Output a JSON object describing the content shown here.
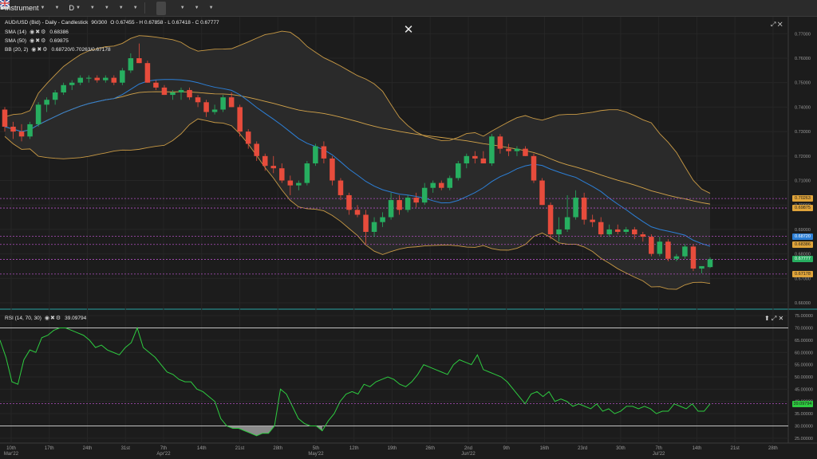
{
  "toolbar": {
    "instrument_label": "Instrument",
    "timeframe_label": "D",
    "flag_icon": "uk-flag-icon"
  },
  "main_chart": {
    "title": "AUD/USD (Bid) - Daily - Candlestick",
    "bars": "90/300",
    "ohlc": "O 0.67455 - H 0.67858 - L 0.67418 - C 0.67777",
    "indicators": [
      {
        "name": "SMA (14)",
        "value": "0.68386"
      },
      {
        "name": "SMA (50)",
        "value": "0.69875"
      },
      {
        "name": "BB (20, 2)",
        "value": "0.68720/0.70263/0.67178"
      }
    ],
    "price_labels": [
      "0.77000",
      "0.76000",
      "0.75000",
      "0.74000",
      "0.73000",
      "0.72000",
      "0.71000",
      "0.70000",
      "0.69000",
      "0.68000",
      "0.67000",
      "0.66000"
    ],
    "price_tags": [
      {
        "text": "0.70263",
        "color": "#e0a43a",
        "fg": "#1c1c1c"
      },
      {
        "text": "0.69875",
        "color": "#e0a43a",
        "fg": "#1c1c1c"
      },
      {
        "text": "0.68720",
        "color": "#2c7fd6",
        "fg": "#ffffff"
      },
      {
        "text": "0.68386",
        "color": "#e0a43a",
        "fg": "#1c1c1c"
      },
      {
        "text": "0.67777",
        "color": "#27ae60",
        "fg": "#ffffff"
      },
      {
        "text": "0.67178",
        "color": "#e0a43a",
        "fg": "#1c1c1c"
      }
    ]
  },
  "rsi": {
    "title": "RSI (14, 70, 30)",
    "value": "39.09794",
    "scale_labels": [
      "75.00000",
      "70.00000",
      "65.00000",
      "60.00000",
      "55.00000",
      "50.00000",
      "45.00000",
      "40.00000",
      "35.00000",
      "30.00000",
      "25.00000"
    ],
    "current_tag": "39.09794"
  },
  "x_axis": {
    "labels": [
      {
        "t": "10th",
        "sub": "Mar'22"
      },
      {
        "t": "17th",
        "sub": ""
      },
      {
        "t": "24th",
        "sub": ""
      },
      {
        "t": "31st",
        "sub": ""
      },
      {
        "t": "7th",
        "sub": "Apr'22"
      },
      {
        "t": "14th",
        "sub": ""
      },
      {
        "t": "21st",
        "sub": ""
      },
      {
        "t": "28th",
        "sub": ""
      },
      {
        "t": "5th",
        "sub": "May'22"
      },
      {
        "t": "12th",
        "sub": ""
      },
      {
        "t": "19th",
        "sub": ""
      },
      {
        "t": "26th",
        "sub": ""
      },
      {
        "t": "2nd",
        "sub": "Jun'22"
      },
      {
        "t": "9th",
        "sub": ""
      },
      {
        "t": "16th",
        "sub": ""
      },
      {
        "t": "23rd",
        "sub": ""
      },
      {
        "t": "30th",
        "sub": ""
      },
      {
        "t": "7th",
        "sub": "Jul'22"
      },
      {
        "t": "14th",
        "sub": ""
      },
      {
        "t": "21st",
        "sub": ""
      },
      {
        "t": "28th",
        "sub": ""
      }
    ]
  },
  "colors": {
    "bull": "#27ae60",
    "bear": "#e74c3c",
    "sma14": "#2c7fd6",
    "sma50": "#d4a44a",
    "bb": "#c99a45",
    "rsi": "#2ecc40",
    "guide": "#b04fc0"
  },
  "chart_data": {
    "type": "candlestick",
    "series": [
      {
        "name": "AUD/USD",
        "ohlc": [
          [
            0.739,
            0.74,
            0.73,
            0.732
          ],
          [
            0.732,
            0.734,
            0.727,
            0.73
          ],
          [
            0.73,
            0.733,
            0.726,
            0.728
          ],
          [
            0.728,
            0.734,
            0.727,
            0.733
          ],
          [
            0.733,
            0.742,
            0.732,
            0.741
          ],
          [
            0.741,
            0.744,
            0.738,
            0.743
          ],
          [
            0.743,
            0.747,
            0.741,
            0.746
          ],
          [
            0.746,
            0.75,
            0.745,
            0.749
          ],
          [
            0.749,
            0.751,
            0.747,
            0.75
          ],
          [
            0.75,
            0.753,
            0.749,
            0.752
          ],
          [
            0.752,
            0.753,
            0.75,
            0.752
          ],
          [
            0.752,
            0.753,
            0.75,
            0.751
          ],
          [
            0.751,
            0.753,
            0.75,
            0.752
          ],
          [
            0.752,
            0.753,
            0.749,
            0.75
          ],
          [
            0.75,
            0.756,
            0.749,
            0.755
          ],
          [
            0.755,
            0.762,
            0.754,
            0.76
          ],
          [
            0.76,
            0.766,
            0.758,
            0.758
          ],
          [
            0.758,
            0.759,
            0.75,
            0.75
          ],
          [
            0.75,
            0.751,
            0.747,
            0.748
          ],
          [
            0.748,
            0.749,
            0.745,
            0.745
          ],
          [
            0.745,
            0.747,
            0.743,
            0.746
          ],
          [
            0.746,
            0.748,
            0.743,
            0.747
          ],
          [
            0.747,
            0.748,
            0.743,
            0.744
          ],
          [
            0.744,
            0.745,
            0.74,
            0.742
          ],
          [
            0.742,
            0.743,
            0.736,
            0.738
          ],
          [
            0.738,
            0.741,
            0.737,
            0.739
          ],
          [
            0.739,
            0.745,
            0.738,
            0.744
          ],
          [
            0.744,
            0.746,
            0.74,
            0.74
          ],
          [
            0.74,
            0.741,
            0.728,
            0.73
          ],
          [
            0.73,
            0.731,
            0.723,
            0.725
          ],
          [
            0.725,
            0.726,
            0.718,
            0.72
          ],
          [
            0.72,
            0.721,
            0.714,
            0.716
          ],
          [
            0.716,
            0.72,
            0.713,
            0.715
          ],
          [
            0.715,
            0.717,
            0.709,
            0.71
          ],
          [
            0.71,
            0.712,
            0.704,
            0.708
          ],
          [
            0.708,
            0.71,
            0.706,
            0.709
          ],
          [
            0.709,
            0.718,
            0.708,
            0.717
          ],
          [
            0.717,
            0.725,
            0.716,
            0.724
          ],
          [
            0.724,
            0.726,
            0.717,
            0.719
          ],
          [
            0.719,
            0.72,
            0.708,
            0.71
          ],
          [
            0.71,
            0.711,
            0.702,
            0.704
          ],
          [
            0.704,
            0.705,
            0.696,
            0.698
          ],
          [
            0.698,
            0.7,
            0.695,
            0.696
          ],
          [
            0.696,
            0.698,
            0.684,
            0.689
          ],
          [
            0.689,
            0.695,
            0.687,
            0.693
          ],
          [
            0.693,
            0.697,
            0.691,
            0.695
          ],
          [
            0.695,
            0.705,
            0.694,
            0.702
          ],
          [
            0.702,
            0.704,
            0.696,
            0.698
          ],
          [
            0.698,
            0.704,
            0.697,
            0.703
          ],
          [
            0.703,
            0.705,
            0.699,
            0.701
          ],
          [
            0.701,
            0.709,
            0.7,
            0.707
          ],
          [
            0.707,
            0.71,
            0.705,
            0.709
          ],
          [
            0.709,
            0.71,
            0.706,
            0.707
          ],
          [
            0.707,
            0.712,
            0.706,
            0.711
          ],
          [
            0.711,
            0.718,
            0.71,
            0.717
          ],
          [
            0.717,
            0.721,
            0.715,
            0.72
          ],
          [
            0.72,
            0.722,
            0.717,
            0.719
          ],
          [
            0.719,
            0.722,
            0.717,
            0.717
          ],
          [
            0.717,
            0.729,
            0.716,
            0.728
          ],
          [
            0.728,
            0.729,
            0.721,
            0.723
          ],
          [
            0.723,
            0.725,
            0.72,
            0.722
          ],
          [
            0.722,
            0.724,
            0.72,
            0.723
          ],
          [
            0.723,
            0.724,
            0.72,
            0.72
          ],
          [
            0.72,
            0.721,
            0.709,
            0.71
          ],
          [
            0.71,
            0.711,
            0.7,
            0.7
          ],
          [
            0.7,
            0.701,
            0.686,
            0.688
          ],
          [
            0.688,
            0.695,
            0.685,
            0.69
          ],
          [
            0.69,
            0.704,
            0.689,
            0.695
          ],
          [
            0.695,
            0.706,
            0.694,
            0.703
          ],
          [
            0.703,
            0.705,
            0.692,
            0.694
          ],
          [
            0.694,
            0.696,
            0.691,
            0.693
          ],
          [
            0.693,
            0.695,
            0.687,
            0.688
          ],
          [
            0.688,
            0.692,
            0.687,
            0.69
          ],
          [
            0.69,
            0.692,
            0.688,
            0.689
          ],
          [
            0.689,
            0.691,
            0.688,
            0.69
          ],
          [
            0.69,
            0.691,
            0.686,
            0.688
          ],
          [
            0.688,
            0.689,
            0.685,
            0.687
          ],
          [
            0.687,
            0.688,
            0.679,
            0.68
          ],
          [
            0.68,
            0.687,
            0.679,
            0.685
          ],
          [
            0.685,
            0.686,
            0.677,
            0.678
          ],
          [
            0.678,
            0.68,
            0.677,
            0.679
          ],
          [
            0.679,
            0.684,
            0.678,
            0.683
          ],
          [
            0.683,
            0.684,
            0.673,
            0.674
          ],
          [
            0.674,
            0.675,
            0.672,
            0.675
          ],
          [
            0.6746,
            0.6786,
            0.6742,
            0.6778
          ]
        ]
      }
    ],
    "ylim": [
      0.66,
      0.775
    ],
    "rsi_values": [
      65,
      58,
      48,
      47,
      57,
      61,
      60,
      66,
      67,
      69,
      70,
      70,
      69,
      68,
      67,
      65,
      62,
      63,
      61,
      60,
      59,
      62,
      64,
      70,
      62,
      60,
      58,
      55,
      52,
      51,
      49,
      48,
      48,
      45,
      44,
      42,
      40,
      33,
      30,
      29,
      29,
      28,
      27,
      26,
      27,
      27,
      30,
      45,
      43,
      38,
      33,
      31,
      30,
      30,
      28,
      32,
      35,
      40,
      43,
      44,
      43,
      47,
      46,
      48,
      49,
      50,
      49,
      47,
      46,
      48,
      51,
      55,
      54,
      53,
      52,
      51,
      55,
      57,
      56,
      55,
      59,
      53,
      52,
      51,
      50,
      48,
      45,
      42,
      39,
      43,
      44,
      42,
      44,
      40,
      41,
      40,
      38,
      39,
      38,
      37,
      39,
      36,
      37,
      35,
      36,
      38,
      38,
      37,
      38,
      37,
      35,
      36,
      36,
      39,
      38,
      37,
      39,
      36,
      36,
      39
    ],
    "rsi_levels": [
      70,
      30
    ],
    "rsi_ylim": [
      23,
      77
    ]
  }
}
